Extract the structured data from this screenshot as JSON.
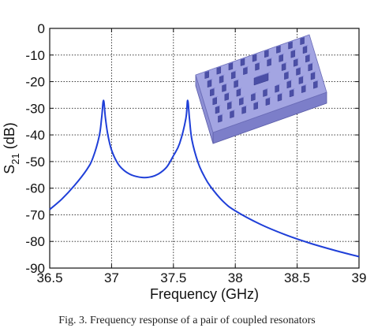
{
  "top_caption_fragment": "",
  "figure_caption": "Fig. 3.   Frequency response of a pair of coupled resonators",
  "chart_data": {
    "type": "line",
    "title": "",
    "xlabel": "Frequency (GHz)",
    "ylabel_main": "S",
    "ylabel_sub": "21",
    "ylabel_unit": " (dB)",
    "xlim": [
      36.5,
      39
    ],
    "ylim": [
      -90,
      0
    ],
    "xticks": [
      36.5,
      37,
      37.5,
      38,
      38.5,
      39
    ],
    "xtick_labels": [
      "36.5",
      "37",
      "37.5",
      "38",
      "38.5",
      "39"
    ],
    "yticks": [
      0,
      -10,
      -20,
      -30,
      -40,
      -50,
      -60,
      -70,
      -80,
      -90
    ],
    "ytick_labels": [
      "0",
      "-10",
      "-20",
      "-30",
      "-40",
      "-50",
      "-60",
      "-70",
      "-80",
      "-90"
    ],
    "grid": true,
    "line_color": "#1f3fd8",
    "series": [
      {
        "name": "",
        "x": [
          36.5,
          36.6,
          36.7,
          36.8,
          36.85,
          36.9,
          36.92,
          36.935,
          36.95,
          36.97,
          37.0,
          37.05,
          37.1,
          37.15,
          37.2,
          37.25,
          37.3,
          37.35,
          37.4,
          37.45,
          37.5,
          37.55,
          37.6,
          37.615,
          37.63,
          37.65,
          37.7,
          37.75,
          37.8,
          37.9,
          38.0,
          38.2,
          38.4,
          38.6,
          38.8,
          39.0
        ],
        "y": [
          -68,
          -64,
          -59,
          -53,
          -48.5,
          -40.5,
          -33.5,
          -27,
          -33.5,
          -40,
          -45.7,
          -50.7,
          -53.3,
          -54.8,
          -55.6,
          -56,
          -55.9,
          -55.3,
          -54,
          -51.8,
          -47.8,
          -43.2,
          -34,
          -27,
          -34,
          -42,
          -50.5,
          -55.6,
          -59.4,
          -64.9,
          -68.5,
          -73.5,
          -77.4,
          -80.6,
          -83.3,
          -85.7
        ]
      }
    ]
  },
  "inset": {
    "description_icon": "3d-resonator-pin-array-icon"
  }
}
